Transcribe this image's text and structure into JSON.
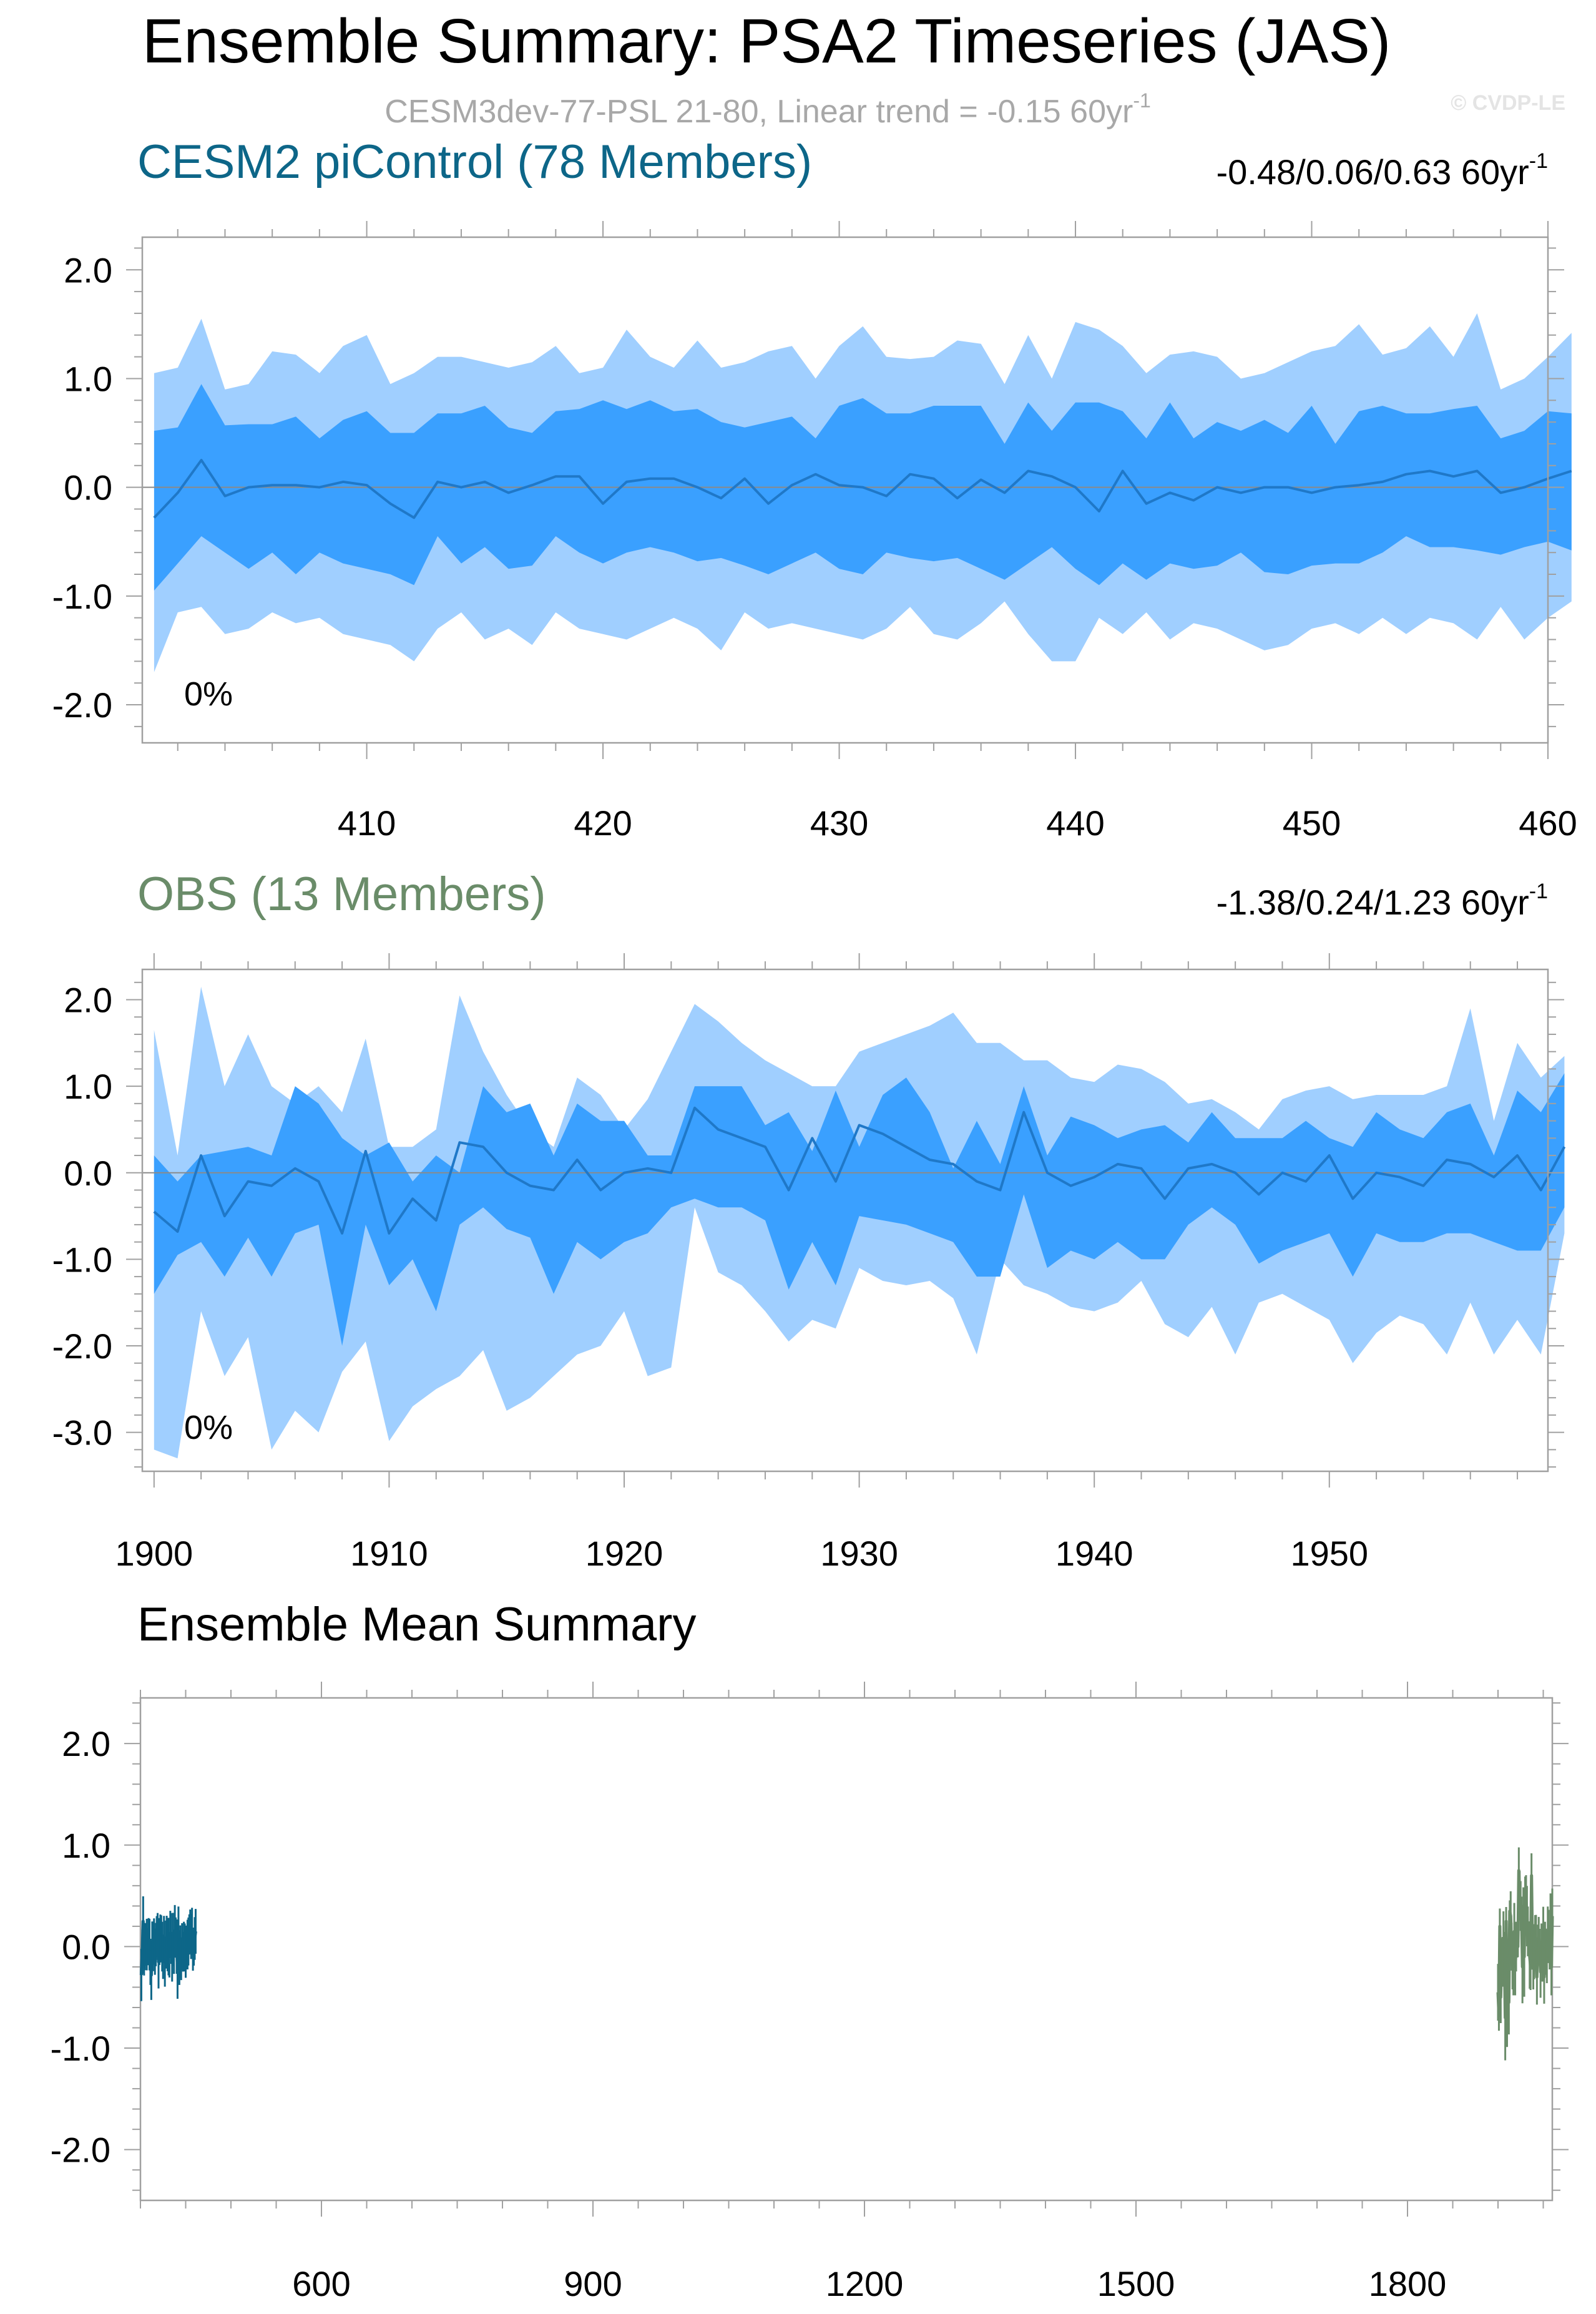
{
  "header": {
    "title": "Ensemble Summary: PSA2 Timeseries (JAS)",
    "subtitle": "CESM3dev-77-PSL 21-80, Linear trend = -0.15 60yr",
    "subtitle_sup": "-1",
    "watermark": "© CVDP-LE"
  },
  "colors": {
    "outer_band": "#a0cfff",
    "inner_band": "#3aa0ff",
    "mean_line": "#1f78c8",
    "cesm": "#0d6688",
    "obs": "#6a8c69",
    "subtitle": "#a8a8a8",
    "frame": "#a0a0a0"
  },
  "chart_data": [
    {
      "type": "area",
      "id": "cesm2",
      "title": "CESM2 piControl (78 Members)",
      "trend_text": "-0.48/0.06/0.63 60yr",
      "trend_sup": "-1",
      "percent_label": "0%",
      "x_start": 401,
      "x_range": [
        400.5,
        460
      ],
      "ylim": [
        -2.35,
        2.3
      ],
      "xticks": [
        410,
        420,
        430,
        440,
        450,
        460
      ],
      "xtick_labels": [
        "410",
        "420",
        "430",
        "440",
        "450",
        "460"
      ],
      "yticks": [
        2.0,
        1.0,
        0.0,
        -1.0,
        -2.0
      ],
      "ytick_labels": [
        "2.0",
        "1.0",
        "0.0",
        "-1.0",
        "-2.0"
      ],
      "series": [
        {
          "name": "max",
          "values": [
            1.05,
            1.1,
            1.55,
            0.9,
            0.95,
            1.25,
            1.22,
            1.05,
            1.3,
            1.4,
            0.95,
            1.05,
            1.2,
            1.2,
            1.15,
            1.1,
            1.15,
            1.3,
            1.05,
            1.1,
            1.45,
            1.2,
            1.1,
            1.35,
            1.1,
            1.15,
            1.25,
            1.3,
            1.0,
            1.3,
            1.48,
            1.2,
            1.18,
            1.2,
            1.35,
            1.32,
            0.95,
            1.4,
            1.0,
            1.52,
            1.45,
            1.3,
            1.05,
            1.22,
            1.25,
            1.2,
            1.0,
            1.05,
            1.15,
            1.25,
            1.3,
            1.5,
            1.22,
            1.28,
            1.48,
            1.2,
            1.6,
            0.9,
            1.0,
            1.2,
            1.42
          ]
        },
        {
          "name": "p75",
          "values": [
            0.52,
            0.55,
            0.95,
            0.57,
            0.58,
            0.58,
            0.65,
            0.45,
            0.62,
            0.7,
            0.5,
            0.5,
            0.68,
            0.68,
            0.75,
            0.55,
            0.5,
            0.7,
            0.72,
            0.8,
            0.72,
            0.8,
            0.7,
            0.72,
            0.6,
            0.55,
            0.6,
            0.65,
            0.45,
            0.75,
            0.82,
            0.68,
            0.68,
            0.75,
            0.75,
            0.75,
            0.4,
            0.78,
            0.52,
            0.78,
            0.78,
            0.7,
            0.45,
            0.78,
            0.45,
            0.6,
            0.52,
            0.62,
            0.5,
            0.75,
            0.4,
            0.7,
            0.75,
            0.68,
            0.68,
            0.72,
            0.75,
            0.45,
            0.52,
            0.7,
            0.68
          ]
        },
        {
          "name": "mean",
          "values": [
            -0.28,
            -0.05,
            0.25,
            -0.08,
            0.0,
            0.02,
            0.02,
            0.0,
            0.05,
            0.02,
            -0.15,
            -0.28,
            0.05,
            0.0,
            0.05,
            -0.05,
            0.02,
            0.1,
            0.1,
            -0.15,
            0.05,
            0.08,
            0.08,
            0.0,
            -0.1,
            0.08,
            -0.15,
            0.02,
            0.12,
            0.02,
            0.0,
            -0.08,
            0.12,
            0.08,
            -0.1,
            0.07,
            -0.05,
            0.15,
            0.1,
            0.0,
            -0.22,
            0.15,
            -0.15,
            -0.05,
            -0.12,
            0.0,
            -0.05,
            0.0,
            0.0,
            -0.05,
            0.0,
            0.02,
            0.05,
            0.12,
            0.15,
            0.1,
            0.15,
            -0.05,
            0.0,
            0.08,
            0.15
          ]
        },
        {
          "name": "p25",
          "values": [
            -0.95,
            -0.7,
            -0.45,
            -0.6,
            -0.75,
            -0.6,
            -0.8,
            -0.6,
            -0.7,
            -0.75,
            -0.8,
            -0.9,
            -0.45,
            -0.7,
            -0.55,
            -0.75,
            -0.72,
            -0.45,
            -0.6,
            -0.7,
            -0.6,
            -0.55,
            -0.6,
            -0.68,
            -0.65,
            -0.72,
            -0.8,
            -0.7,
            -0.6,
            -0.75,
            -0.8,
            -0.6,
            -0.65,
            -0.68,
            -0.65,
            -0.75,
            -0.85,
            -0.7,
            -0.55,
            -0.75,
            -0.9,
            -0.7,
            -0.85,
            -0.7,
            -0.75,
            -0.72,
            -0.6,
            -0.78,
            -0.8,
            -0.72,
            -0.7,
            -0.7,
            -0.6,
            -0.45,
            -0.55,
            -0.55,
            -0.58,
            -0.62,
            -0.55,
            -0.5,
            -0.58
          ]
        },
        {
          "name": "min",
          "values": [
            -1.7,
            -1.15,
            -1.1,
            -1.35,
            -1.3,
            -1.15,
            -1.25,
            -1.2,
            -1.35,
            -1.4,
            -1.45,
            -1.6,
            -1.3,
            -1.15,
            -1.4,
            -1.3,
            -1.45,
            -1.15,
            -1.3,
            -1.35,
            -1.4,
            -1.3,
            -1.2,
            -1.3,
            -1.5,
            -1.15,
            -1.3,
            -1.25,
            -1.3,
            -1.35,
            -1.4,
            -1.3,
            -1.1,
            -1.35,
            -1.4,
            -1.25,
            -1.05,
            -1.35,
            -1.6,
            -1.6,
            -1.2,
            -1.35,
            -1.15,
            -1.4,
            -1.25,
            -1.3,
            -1.4,
            -1.5,
            -1.45,
            -1.3,
            -1.25,
            -1.35,
            -1.2,
            -1.35,
            -1.2,
            -1.25,
            -1.4,
            -1.1,
            -1.4,
            -1.2,
            -1.05
          ]
        }
      ]
    },
    {
      "type": "area",
      "id": "obs",
      "title": "OBS (13 Members)",
      "trend_text": "-1.38/0.24/1.23 60yr",
      "trend_sup": "-1",
      "percent_label": "0%",
      "x_start": 1900,
      "x_range": [
        1899.5,
        1959.3
      ],
      "ylim": [
        -3.45,
        2.35
      ],
      "xticks": [
        1900,
        1910,
        1920,
        1930,
        1940,
        1950
      ],
      "xtick_labels": [
        "1900",
        "1910",
        "1920",
        "1930",
        "1940",
        "1950"
      ],
      "yticks": [
        2.0,
        1.0,
        0.0,
        -1.0,
        -2.0,
        -3.0
      ],
      "ytick_labels": [
        "2.0",
        "1.0",
        "0.0",
        "-1.0",
        "-2.0",
        "-3.0"
      ],
      "series": [
        {
          "name": "max",
          "values": [
            1.65,
            0.2,
            2.15,
            1.0,
            1.6,
            1.0,
            0.8,
            1.0,
            0.7,
            1.55,
            0.3,
            0.3,
            0.5,
            2.05,
            1.4,
            0.9,
            0.5,
            0.3,
            1.1,
            0.9,
            0.5,
            0.85,
            1.4,
            1.95,
            1.75,
            1.5,
            1.3,
            1.15,
            1.0,
            1.0,
            1.4,
            1.5,
            1.6,
            1.7,
            1.85,
            1.5,
            1.5,
            1.3,
            1.3,
            1.1,
            1.05,
            1.25,
            1.2,
            1.05,
            0.8,
            0.85,
            0.7,
            0.5,
            0.85,
            0.95,
            1.0,
            0.85,
            0.9,
            0.9,
            0.9,
            1.0,
            1.9,
            0.6,
            1.5,
            1.1,
            1.35
          ]
        },
        {
          "name": "p75",
          "values": [
            0.2,
            -0.1,
            0.2,
            0.25,
            0.3,
            0.2,
            1.0,
            0.8,
            0.4,
            0.2,
            0.35,
            -0.1,
            0.2,
            0.0,
            1.0,
            0.7,
            0.8,
            0.2,
            0.8,
            0.6,
            0.6,
            0.2,
            0.2,
            1.0,
            1.0,
            1.0,
            0.55,
            0.7,
            0.25,
            0.95,
            0.3,
            0.9,
            1.1,
            0.7,
            0.05,
            0.6,
            0.1,
            1.0,
            0.2,
            0.65,
            0.55,
            0.4,
            0.5,
            0.55,
            0.35,
            0.7,
            0.4,
            0.4,
            0.4,
            0.6,
            0.4,
            0.3,
            0.7,
            0.5,
            0.4,
            0.7,
            0.8,
            0.2,
            0.95,
            0.7,
            1.15
          ]
        },
        {
          "name": "mean",
          "values": [
            -0.45,
            -0.68,
            0.2,
            -0.5,
            -0.1,
            -0.15,
            0.05,
            -0.1,
            -0.7,
            0.25,
            -0.7,
            -0.3,
            -0.55,
            0.35,
            0.3,
            0.0,
            -0.15,
            -0.2,
            0.15,
            -0.2,
            0.0,
            0.05,
            0.0,
            0.75,
            0.5,
            0.4,
            0.3,
            -0.2,
            0.4,
            -0.1,
            0.55,
            0.45,
            0.3,
            0.15,
            0.1,
            -0.1,
            -0.2,
            0.7,
            0.0,
            -0.15,
            -0.05,
            0.1,
            0.05,
            -0.3,
            0.05,
            0.1,
            0.0,
            -0.25,
            0.0,
            -0.1,
            0.2,
            -0.3,
            0.0,
            -0.05,
            -0.15,
            0.15,
            0.1,
            -0.05,
            0.2,
            -0.2,
            0.3
          ]
        },
        {
          "name": "p25",
          "values": [
            -1.4,
            -0.95,
            -0.8,
            -1.2,
            -0.75,
            -1.2,
            -0.7,
            -0.6,
            -2.0,
            -0.6,
            -1.3,
            -1.0,
            -1.6,
            -0.6,
            -0.4,
            -0.65,
            -0.75,
            -1.4,
            -0.8,
            -1.0,
            -0.8,
            -0.7,
            -0.4,
            -0.3,
            -0.4,
            -0.4,
            -0.55,
            -1.35,
            -0.8,
            -1.3,
            -0.5,
            -0.55,
            -0.6,
            -0.7,
            -0.8,
            -1.2,
            -1.2,
            -0.25,
            -1.1,
            -0.9,
            -1.0,
            -0.8,
            -1.0,
            -1.0,
            -0.6,
            -0.4,
            -0.6,
            -1.05,
            -0.9,
            -0.8,
            -0.7,
            -1.2,
            -0.7,
            -0.8,
            -0.8,
            -0.7,
            -0.7,
            -0.8,
            -0.9,
            -0.9,
            -0.4
          ]
        },
        {
          "name": "min",
          "values": [
            -3.2,
            -3.3,
            -1.6,
            -2.35,
            -1.9,
            -3.2,
            -2.75,
            -3.0,
            -2.3,
            -1.95,
            -3.1,
            -2.7,
            -2.5,
            -2.35,
            -2.05,
            -2.75,
            -2.6,
            -2.35,
            -2.1,
            -2.0,
            -1.6,
            -2.35,
            -2.25,
            -0.4,
            -1.15,
            -1.3,
            -1.6,
            -1.95,
            -1.7,
            -1.8,
            -1.1,
            -1.25,
            -1.3,
            -1.25,
            -1.45,
            -2.1,
            -1.0,
            -1.3,
            -1.4,
            -1.55,
            -1.6,
            -1.5,
            -1.25,
            -1.75,
            -1.9,
            -1.55,
            -2.1,
            -1.5,
            -1.4,
            -1.55,
            -1.7,
            -2.2,
            -1.85,
            -1.65,
            -1.75,
            -2.1,
            -1.5,
            -2.1,
            -1.7,
            -2.1,
            -0.7
          ]
        }
      ]
    },
    {
      "type": "line",
      "id": "ensemble_mean",
      "title": "Ensemble Mean Summary",
      "x_range": [
        400,
        1960
      ],
      "ylim": [
        -2.5,
        2.45
      ],
      "xticks": [
        600,
        900,
        1200,
        1500,
        1800
      ],
      "xtick_labels": [
        "600",
        "900",
        "1200",
        "1500",
        "1800"
      ],
      "yticks": [
        2.0,
        1.0,
        0.0,
        -1.0,
        -2.0
      ],
      "ytick_labels": [
        "2.0",
        "1.0",
        "0.0",
        "-1.0",
        "-2.0"
      ],
      "series": [
        {
          "name": "CESM2 piControl",
          "color_key": "cesm",
          "source": "cesm2"
        },
        {
          "name": "OBS",
          "color_key": "obs",
          "source": "obs"
        }
      ]
    }
  ]
}
